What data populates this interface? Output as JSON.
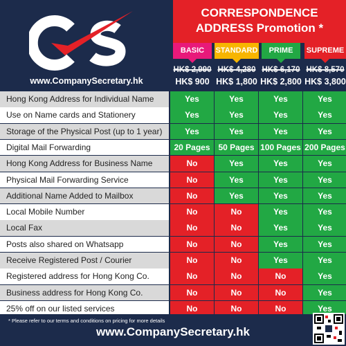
{
  "brand": {
    "logo_text": "CS",
    "url": "www.CompanySecretary.hk"
  },
  "promotion": {
    "title_line1": "CORRESPONDENCE",
    "title_line2": "ADDRESS Promotion *"
  },
  "plans": [
    {
      "name": "BASIC",
      "old_price": "HK$ 2,990",
      "new_price": "HK$ 900",
      "color": "#e8197a"
    },
    {
      "name": "STANDARD",
      "old_price": "HK$ 4,280",
      "new_price": "HK$ 1,800",
      "color": "#f7b500"
    },
    {
      "name": "PRIME",
      "old_price": "HK$ 6,170",
      "new_price": "HK$ 2,800",
      "color": "#22a844"
    },
    {
      "name": "SUPREME",
      "old_price": "HK$ 8,570",
      "new_price": "HK$ 3,800",
      "color": "#e42127"
    }
  ],
  "features": [
    {
      "label": "Hong Kong Address for Individual Name",
      "values": [
        "Yes",
        "Yes",
        "Yes",
        "Yes"
      ]
    },
    {
      "label": "Use on Name cards and Stationery",
      "values": [
        "Yes",
        "Yes",
        "Yes",
        "Yes"
      ]
    },
    {
      "label": "Storage of the Physical Post (up to 1 year)",
      "values": [
        "Yes",
        "Yes",
        "Yes",
        "Yes"
      ]
    },
    {
      "label": "Digital Mail Forwarding",
      "values": [
        "20 Pages",
        "50 Pages",
        "100 Pages",
        "200 Pages"
      ]
    },
    {
      "label": "Hong Kong Address for Business Name",
      "values": [
        "No",
        "Yes",
        "Yes",
        "Yes"
      ]
    },
    {
      "label": "Physical Mail Forwarding Service",
      "values": [
        "No",
        "Yes",
        "Yes",
        "Yes"
      ]
    },
    {
      "label": "Additional Name Added to Mailbox",
      "values": [
        "No",
        "Yes",
        "Yes",
        "Yes"
      ]
    },
    {
      "label": "Local Mobile Number",
      "values": [
        "No",
        "No",
        "Yes",
        "Yes"
      ]
    },
    {
      "label": "Local Fax",
      "values": [
        "No",
        "No",
        "Yes",
        "Yes"
      ]
    },
    {
      "label": "Posts also shared on Whatsapp",
      "values": [
        "No",
        "No",
        "Yes",
        "Yes"
      ]
    },
    {
      "label": "Receive Registered Post / Courier",
      "values": [
        "No",
        "No",
        "Yes",
        "Yes"
      ]
    },
    {
      "label": "Registered address for Hong Kong Co.",
      "values": [
        "No",
        "No",
        "No",
        "Yes"
      ]
    },
    {
      "label": "Business address for Hong Kong Co.",
      "values": [
        "No",
        "No",
        "No",
        "Yes"
      ]
    },
    {
      "label": "25% off on our listed services",
      "values": [
        "No",
        "No",
        "No",
        "Yes"
      ]
    }
  ],
  "footer": {
    "note": "* Please refer to our terms and conditions on pricing for more details",
    "url": "www.CompanySecretary.hk"
  }
}
